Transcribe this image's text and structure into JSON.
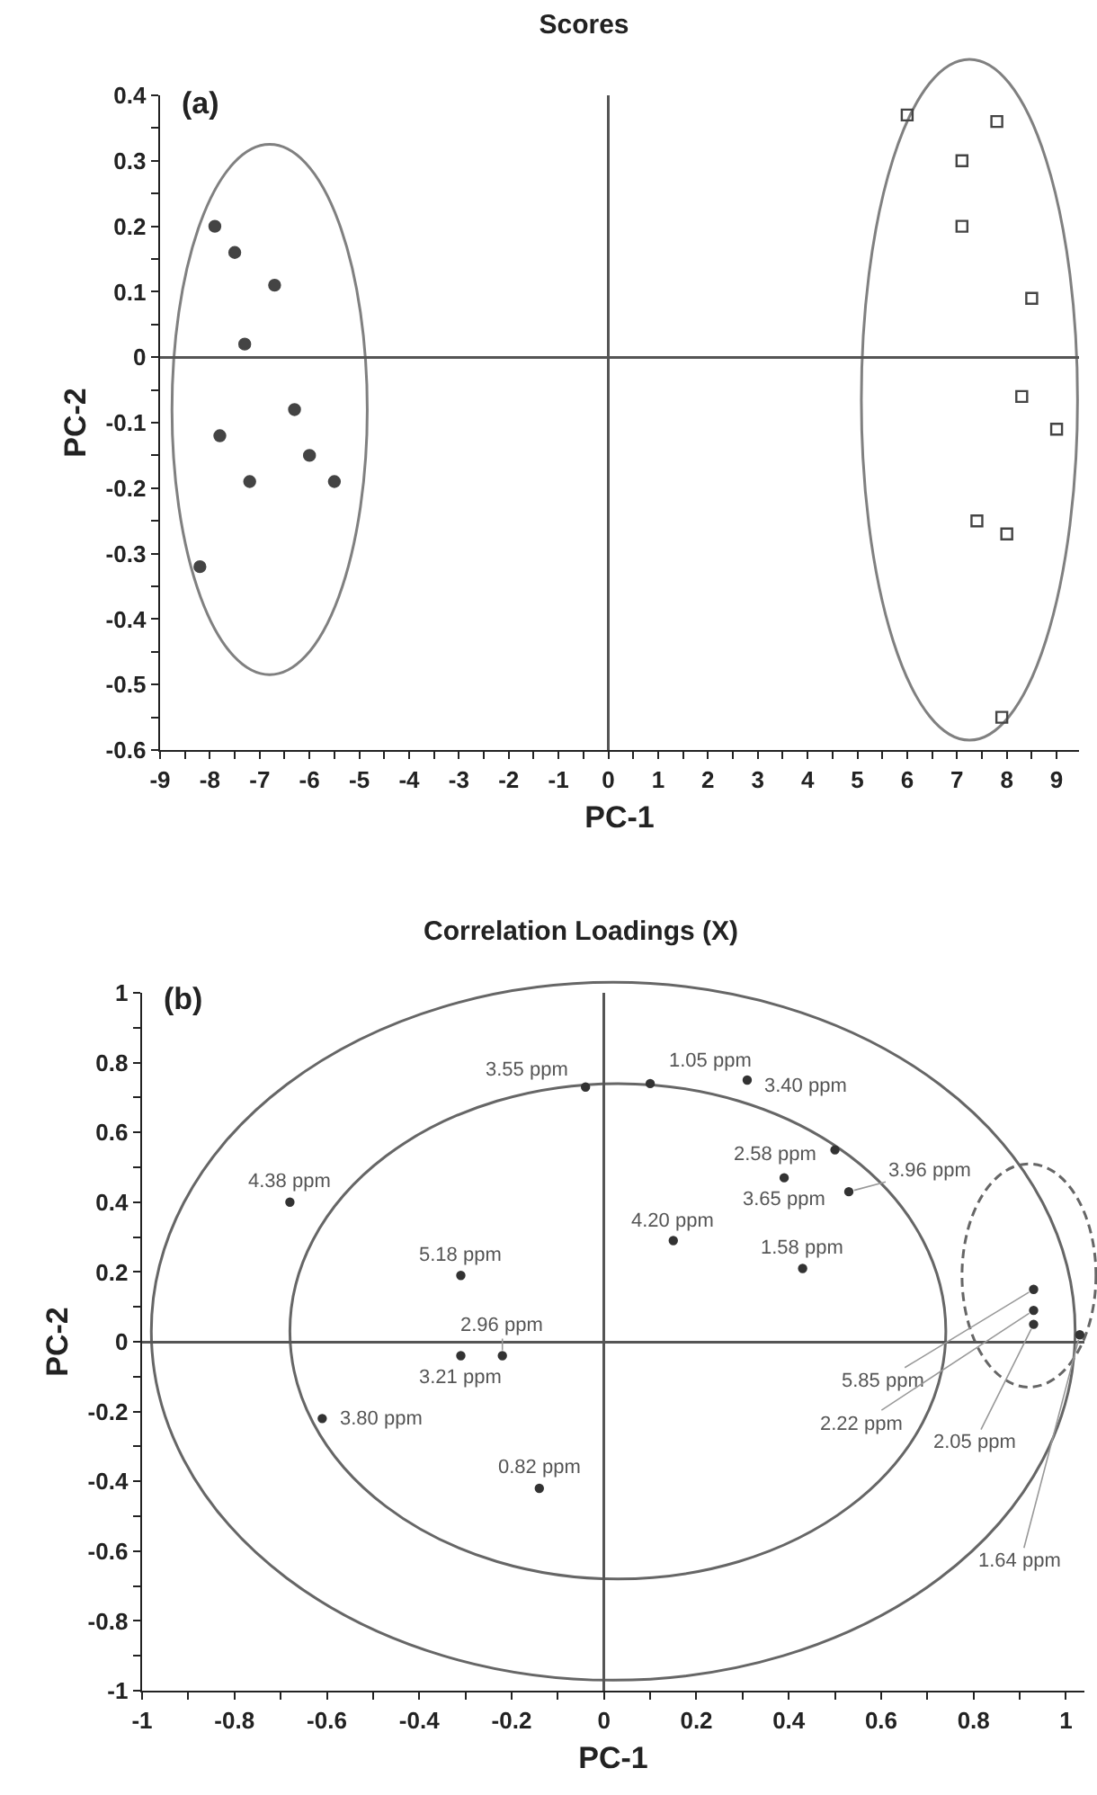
{
  "chart_data": [
    {
      "type": "scatter",
      "title": "Scores",
      "xlabel": "PC-1",
      "ylabel": "PC-2",
      "annotations": [
        "(a)"
      ],
      "xlim": [
        -9,
        9.45
      ],
      "xticks": [
        -9,
        {
          "value": -8.5,
          "label": null
        },
        -8,
        {
          "value": -7.5,
          "label": null
        },
        -7,
        {
          "value": -6.5,
          "label": null
        },
        -6,
        {
          "value": -5.5,
          "label": null
        },
        -5,
        {
          "value": -4.5,
          "label": null
        },
        -4,
        {
          "value": -3.5,
          "label": null
        },
        -3,
        {
          "value": -2.5,
          "label": null
        },
        -2,
        {
          "value": -1.5,
          "label": null
        },
        -1,
        {
          "value": -0.5,
          "label": null
        },
        0,
        {
          "value": 0.5,
          "label": null
        },
        1,
        {
          "value": 1.5,
          "label": null
        },
        2,
        {
          "value": 2.5,
          "label": null
        },
        3,
        {
          "value": 3.5,
          "label": null
        },
        4,
        {
          "value": 4.5,
          "label": null
        },
        5,
        {
          "value": 5.5,
          "label": null
        },
        6,
        {
          "value": 6.5,
          "label": null
        },
        7,
        {
          "value": 7.5,
          "label": null
        },
        8,
        {
          "value": 8.5,
          "label": null
        },
        9
      ],
      "ylim": [
        -0.6,
        0.4
      ],
      "yticks": [
        -0.6,
        {
          "value": -0.55,
          "label": null
        },
        -0.5,
        {
          "value": -0.45,
          "label": null
        },
        -0.4,
        {
          "value": -0.35,
          "label": null
        },
        -0.3,
        {
          "value": -0.25,
          "label": null
        },
        -0.2,
        {
          "value": -0.15,
          "label": null
        },
        -0.1,
        {
          "value": -0.05,
          "label": null
        },
        0,
        {
          "value": 0.05,
          "label": null
        },
        0.1,
        {
          "value": 0.15,
          "label": null
        },
        0.2,
        {
          "value": 0.25,
          "label": null
        },
        0.3,
        {
          "value": 0.35,
          "label": null
        },
        0.4
      ],
      "series": [
        {
          "type": "scatter",
          "marker": "circle",
          "color": "#444444",
          "x": [
            -7.9,
            -7.5,
            -6.7,
            -7.3,
            -6.3,
            -7.8,
            -6.0,
            -7.2,
            -5.5,
            -8.2
          ],
          "values": [
            0.2,
            0.16,
            0.11,
            0.02,
            -0.08,
            -0.12,
            -0.15,
            -0.19,
            -0.19,
            -0.32
          ]
        },
        {
          "type": "scatter",
          "marker": "square",
          "color": "#444444",
          "x": [
            6.0,
            7.8,
            7.1,
            7.1,
            8.5,
            8.3,
            9.0,
            7.4,
            8.0,
            7.9
          ],
          "values": [
            0.37,
            0.36,
            0.3,
            0.2,
            0.09,
            -0.06,
            -0.11,
            -0.25,
            -0.27,
            -0.55
          ]
        }
      ]
    },
    {
      "type": "scatter",
      "title": "Correlation Loadings (X)",
      "xlabel": "PC-1",
      "ylabel": "PC-2",
      "annotations": [
        "(b)",
        {
          "text": "4.38 ppm",
          "x": -0.68,
          "y": 0.4
        },
        {
          "text": "5.18 ppm",
          "x": -0.31,
          "y": 0.19
        },
        {
          "text": "3.21 ppm",
          "x": -0.31,
          "y": -0.04
        },
        {
          "text": "2.96 ppm",
          "x": -0.22,
          "y": -0.04
        },
        {
          "text": "3.80 ppm",
          "x": -0.61,
          "y": -0.22
        },
        {
          "text": "0.82 ppm",
          "x": -0.14,
          "y": -0.42
        },
        {
          "text": "3.55 ppm",
          "x": -0.04,
          "y": 0.73
        },
        {
          "text": "1.05 ppm",
          "x": 0.1,
          "y": 0.74
        },
        {
          "text": "3.40 ppm",
          "x": 0.31,
          "y": 0.75
        },
        {
          "text": "2.58 ppm",
          "x": 0.5,
          "y": 0.55
        },
        {
          "text": "3.65 ppm",
          "x": 0.39,
          "y": 0.47
        },
        {
          "text": "3.96 ppm",
          "x": 0.53,
          "y": 0.43
        },
        {
          "text": "4.20 ppm",
          "x": 0.15,
          "y": 0.29
        },
        {
          "text": "1.58 ppm",
          "x": 0.43,
          "y": 0.21
        },
        {
          "text": "5.85 ppm",
          "x": 0.93,
          "y": 0.15
        },
        {
          "text": "2.22 ppm",
          "x": 0.93,
          "y": 0.09
        },
        {
          "text": "2.05 ppm",
          "x": 0.93,
          "y": 0.05
        },
        {
          "text": "1.64 ppm",
          "x": 1.03,
          "y": 0.02
        }
      ],
      "xlim": [
        -1,
        1.04
      ],
      "xticks": [
        -1,
        {
          "value": -0.9,
          "label": null
        },
        -0.8,
        {
          "value": -0.7,
          "label": null
        },
        -0.6,
        {
          "value": -0.5,
          "label": null
        },
        -0.4,
        {
          "value": -0.3,
          "label": null
        },
        -0.2,
        {
          "value": -0.1,
          "label": null
        },
        0,
        {
          "value": 0.1,
          "label": null
        },
        0.2,
        {
          "value": 0.3,
          "label": null
        },
        0.4,
        {
          "value": 0.5,
          "label": null
        },
        0.6,
        {
          "value": 0.7,
          "label": null
        },
        0.8,
        {
          "value": 0.9,
          "label": null
        },
        1
      ],
      "ylim": [
        -1,
        1
      ],
      "yticks": [
        -1,
        {
          "value": -0.9,
          "label": null
        },
        -0.8,
        {
          "value": -0.7,
          "label": null
        },
        -0.6,
        {
          "value": -0.5,
          "label": null
        },
        -0.4,
        {
          "value": -0.3,
          "label": null
        },
        -0.2,
        {
          "value": -0.1,
          "label": null
        },
        0,
        {
          "value": 0.1,
          "label": null
        },
        0.2,
        {
          "value": 0.3,
          "label": null
        },
        0.4,
        {
          "value": 0.5,
          "label": null
        },
        0.6,
        {
          "value": 0.7,
          "label": null
        },
        0.8,
        {
          "value": 0.9,
          "label": null
        },
        1
      ],
      "series": [
        {
          "type": "scatter",
          "marker": "circle",
          "color": "#333333",
          "x": [
            -0.68,
            -0.31,
            -0.31,
            -0.22,
            -0.61,
            -0.14,
            -0.04,
            0.1,
            0.31,
            0.5,
            0.39,
            0.53,
            0.15,
            0.43,
            0.93,
            0.93,
            0.93,
            1.03
          ],
          "values": [
            0.4,
            0.19,
            -0.04,
            -0.04,
            -0.22,
            -0.42,
            0.73,
            0.74,
            0.75,
            0.55,
            0.47,
            0.43,
            0.29,
            0.21,
            0.15,
            0.09,
            0.05,
            0.02
          ]
        }
      ]
    }
  ]
}
